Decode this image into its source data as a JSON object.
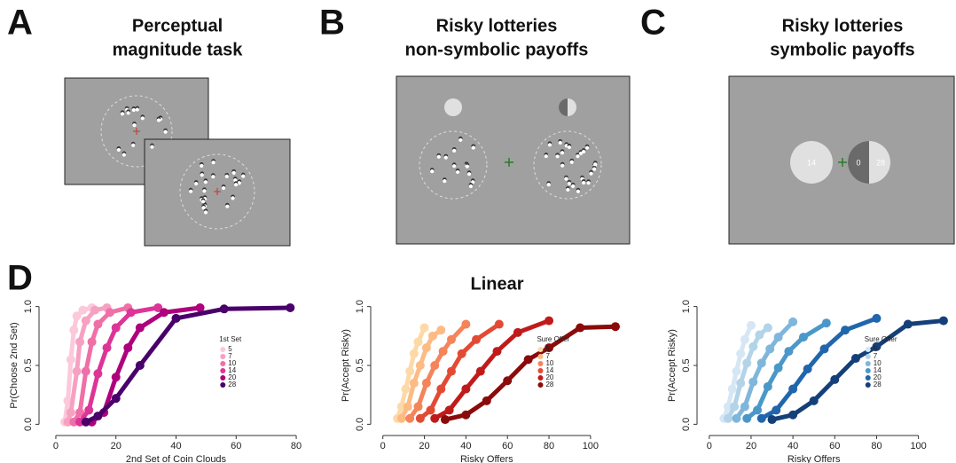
{
  "panels": {
    "a": {
      "label": "A",
      "title": [
        "Perceptual",
        "magnitude task"
      ]
    },
    "b": {
      "label": "B",
      "title": [
        "Risky lotteries",
        "non-symbolic payoffs"
      ]
    },
    "c": {
      "label": "C",
      "title": [
        "Risky lotteries",
        "symbolic payoffs"
      ],
      "sure_payoff": 14,
      "risky_payoffs": [
        0,
        28
      ]
    },
    "d": {
      "label": "D"
    }
  },
  "chart_data": [
    {
      "type": "line",
      "xlabel": "2nd Set of Coin Clouds",
      "ylabel": "Pr(Choose 2nd Set)",
      "legend_title": "1st Set",
      "xlim": [
        -5,
        85
      ],
      "ylim": [
        -0.05,
        1.05
      ],
      "xticks": [
        0,
        20,
        40,
        60,
        80
      ],
      "yticks": [
        {
          "value": 0,
          "label": "0.0"
        },
        {
          "value": 0.5,
          "label": "0.5"
        },
        {
          "value": 1,
          "label": "1.0"
        }
      ],
      "series": [
        {
          "name": "5",
          "color": "#fbc9da",
          "x": [
            3,
            4,
            5,
            6,
            7,
            9,
            12
          ],
          "values": [
            0.02,
            0.2,
            0.55,
            0.8,
            0.92,
            0.97,
            0.99
          ]
        },
        {
          "name": "7",
          "color": "#f7a1c2",
          "x": [
            4,
            5,
            7,
            8,
            10,
            13,
            17
          ],
          "values": [
            0.02,
            0.1,
            0.45,
            0.7,
            0.88,
            0.97,
            0.99
          ]
        },
        {
          "name": "10",
          "color": "#ef6fa7",
          "x": [
            6,
            8,
            10,
            12,
            14,
            18,
            24
          ],
          "values": [
            0.02,
            0.1,
            0.45,
            0.7,
            0.85,
            0.95,
            0.99
          ]
        },
        {
          "name": "14",
          "color": "#dd3497",
          "x": [
            8,
            11,
            14,
            17,
            20,
            25,
            34
          ],
          "values": [
            0.02,
            0.12,
            0.43,
            0.65,
            0.82,
            0.95,
            0.99
          ]
        },
        {
          "name": "20",
          "color": "#ae017e",
          "x": [
            12,
            16,
            20,
            24,
            28,
            36,
            48
          ],
          "values": [
            0.02,
            0.1,
            0.4,
            0.65,
            0.82,
            0.95,
            0.99
          ]
        },
        {
          "name": "28",
          "color": "#49006a",
          "x": [
            10,
            14,
            20,
            28,
            40,
            56,
            78
          ],
          "values": [
            0.02,
            0.07,
            0.22,
            0.5,
            0.9,
            0.98,
            0.99
          ]
        }
      ]
    },
    {
      "type": "line",
      "title": "Linear",
      "xlabel": "Risky Offers",
      "ylabel": "Pr(Accept Risky)",
      "legend_title": "Sure Offer",
      "xlim": [
        -5,
        115
      ],
      "ylim": [
        -0.05,
        1.05
      ],
      "xticks": [
        0,
        20,
        40,
        60,
        80,
        100
      ],
      "yticks": [
        {
          "value": 0,
          "label": "0.0"
        },
        {
          "value": 0.5,
          "label": "0.5"
        },
        {
          "value": 1,
          "label": "1.0"
        }
      ],
      "series": [
        {
          "name": "5",
          "color": "#fdd9a8",
          "x": [
            7,
            9,
            11,
            13,
            15,
            17,
            20
          ],
          "values": [
            0.05,
            0.15,
            0.3,
            0.45,
            0.6,
            0.7,
            0.82
          ]
        },
        {
          "name": "7",
          "color": "#fdbb84",
          "x": [
            9,
            12,
            15,
            18,
            21,
            24,
            28
          ],
          "values": [
            0.05,
            0.15,
            0.35,
            0.5,
            0.65,
            0.75,
            0.8
          ]
        },
        {
          "name": "10",
          "color": "#f4845a",
          "x": [
            13,
            17,
            21,
            25,
            29,
            33,
            40
          ],
          "values": [
            0.05,
            0.15,
            0.35,
            0.5,
            0.62,
            0.72,
            0.85
          ]
        },
        {
          "name": "14",
          "color": "#e34a33",
          "x": [
            18,
            23,
            28,
            33,
            38,
            45,
            56
          ],
          "values": [
            0.05,
            0.12,
            0.3,
            0.45,
            0.6,
            0.72,
            0.85
          ]
        },
        {
          "name": "20",
          "color": "#c01b1b",
          "x": [
            25,
            32,
            40,
            47,
            55,
            65,
            80
          ],
          "values": [
            0.05,
            0.12,
            0.3,
            0.45,
            0.62,
            0.78,
            0.88
          ]
        },
        {
          "name": "28",
          "color": "#8b0a0a",
          "x": [
            30,
            40,
            50,
            60,
            70,
            80,
            95,
            112
          ],
          "values": [
            0.04,
            0.08,
            0.2,
            0.37,
            0.55,
            0.65,
            0.82,
            0.83
          ]
        }
      ]
    },
    {
      "type": "line",
      "xlabel": "Risky Offers",
      "ylabel": "Pr(Accept Risky)",
      "legend_title": "Sure Offer",
      "xlim": [
        -5,
        115
      ],
      "ylim": [
        -0.05,
        1.05
      ],
      "xticks": [
        0,
        20,
        40,
        60,
        80,
        100
      ],
      "yticks": [
        {
          "value": 0,
          "label": "0.0"
        },
        {
          "value": 0.5,
          "label": "0.5"
        },
        {
          "value": 1,
          "label": "1.0"
        }
      ],
      "series": [
        {
          "name": "5",
          "color": "#d6e6f4",
          "x": [
            7,
            9,
            11,
            13,
            15,
            17,
            20
          ],
          "values": [
            0.05,
            0.15,
            0.3,
            0.45,
            0.6,
            0.72,
            0.84
          ]
        },
        {
          "name": "7",
          "color": "#b3d3e8",
          "x": [
            9,
            12,
            15,
            18,
            21,
            24,
            28
          ],
          "values": [
            0.05,
            0.15,
            0.35,
            0.52,
            0.66,
            0.76,
            0.82
          ]
        },
        {
          "name": "10",
          "color": "#7fb6dc",
          "x": [
            13,
            17,
            21,
            25,
            29,
            33,
            40
          ],
          "values": [
            0.05,
            0.15,
            0.36,
            0.52,
            0.64,
            0.74,
            0.87
          ]
        },
        {
          "name": "14",
          "color": "#4a98c9",
          "x": [
            18,
            23,
            28,
            33,
            38,
            45,
            56
          ],
          "values": [
            0.05,
            0.12,
            0.32,
            0.48,
            0.62,
            0.74,
            0.86
          ]
        },
        {
          "name": "20",
          "color": "#2166ac",
          "x": [
            25,
            32,
            40,
            47,
            55,
            65,
            80
          ],
          "values": [
            0.05,
            0.12,
            0.3,
            0.47,
            0.64,
            0.8,
            0.9
          ]
        },
        {
          "name": "28",
          "color": "#153f78",
          "x": [
            30,
            40,
            50,
            60,
            70,
            80,
            95,
            112
          ],
          "values": [
            0.04,
            0.08,
            0.2,
            0.38,
            0.56,
            0.66,
            0.85,
            0.88
          ]
        }
      ]
    }
  ]
}
